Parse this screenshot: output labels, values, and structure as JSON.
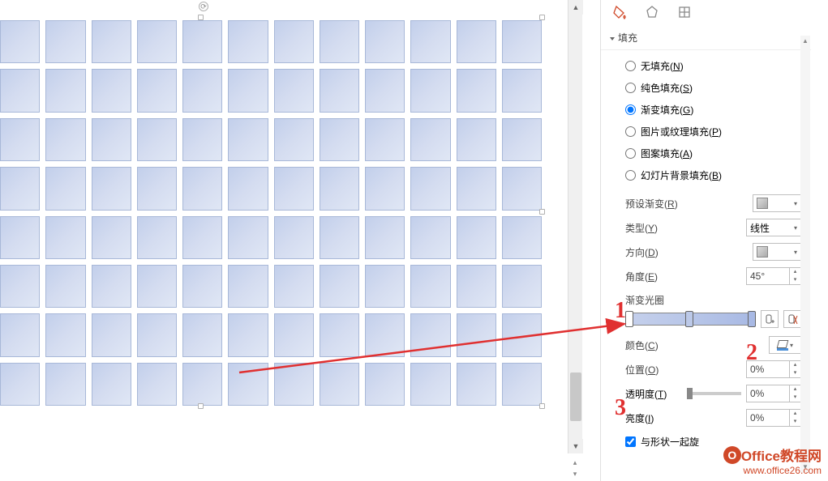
{
  "table": {
    "rows": 8,
    "cols": 12
  },
  "panel": {
    "section_title": "填充",
    "radios": {
      "no_fill": {
        "label": "无填充",
        "accel": "N"
      },
      "solid": {
        "label": "纯色填充",
        "accel": "S"
      },
      "gradient": {
        "label": "渐变填充",
        "accel": "G"
      },
      "picture": {
        "label": "图片或纹理填充",
        "accel": "P"
      },
      "pattern": {
        "label": "图案填充",
        "accel": "A"
      },
      "slide_bg": {
        "label": "幻灯片背景填充",
        "accel": "B"
      }
    },
    "selected_radio": "gradient",
    "preset": {
      "label": "预设渐变",
      "accel": "R"
    },
    "type": {
      "label": "类型",
      "accel": "Y",
      "value": "线性"
    },
    "direction": {
      "label": "方向",
      "accel": "D"
    },
    "angle": {
      "label": "角度",
      "accel": "E",
      "value": "45°"
    },
    "gstops": {
      "label": "渐变光圈"
    },
    "color": {
      "label": "颜色",
      "accel": "C"
    },
    "position": {
      "label": "位置",
      "accel": "O",
      "value": "0%"
    },
    "transparency": {
      "label": "透明度",
      "accel": "T",
      "value": "0%"
    },
    "brightness": {
      "label": "亮度",
      "accel": "I",
      "value": "0%"
    },
    "rotate_with_shape": {
      "label": "与形状一起旋",
      "checked": true
    }
  },
  "annotations": {
    "n1": "1",
    "n2": "2",
    "n3": "3"
  },
  "watermark": {
    "brand": "Office教程网",
    "url": "www.office26.com",
    "logo_letter": "O"
  }
}
